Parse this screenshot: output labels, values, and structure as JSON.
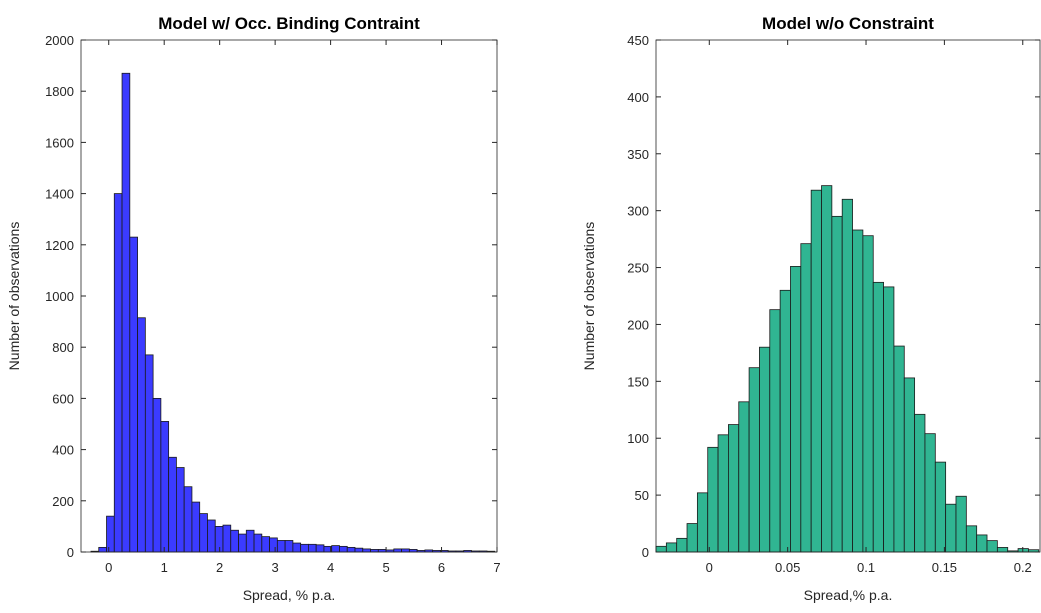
{
  "chart_data": [
    {
      "type": "histogram",
      "title": "Model w/ Occ. Binding Contraint",
      "xlabel": "Spread, % p.a.",
      "ylabel": "Number of observations",
      "color": "#3b3bff",
      "bins": [
        -0.32,
        -0.18,
        -0.04,
        0.1,
        0.24,
        0.38,
        0.52,
        0.66,
        0.8,
        0.94,
        1.08,
        1.22,
        1.36,
        1.5,
        1.64,
        1.78,
        1.92,
        2.06,
        2.2,
        2.34,
        2.48,
        2.62,
        2.76,
        2.9,
        3.04,
        3.18,
        3.32,
        3.46,
        3.6,
        3.74,
        3.88,
        4.02,
        4.16,
        4.3,
        4.44,
        4.58,
        4.72,
        4.86,
        5.0,
        5.14,
        5.28,
        5.42,
        5.56,
        5.7,
        5.84,
        5.98,
        6.12,
        6.26,
        6.4,
        6.54,
        6.68,
        6.82,
        6.96
      ],
      "values": [
        3,
        18,
        140,
        1400,
        1870,
        1230,
        915,
        770,
        600,
        510,
        370,
        330,
        255,
        195,
        150,
        125,
        100,
        105,
        85,
        70,
        85,
        70,
        60,
        55,
        45,
        45,
        35,
        30,
        30,
        28,
        22,
        25,
        22,
        18,
        15,
        12,
        10,
        10,
        8,
        12,
        12,
        10,
        6,
        8,
        6,
        6,
        4,
        4,
        6,
        4,
        4,
        3
      ],
      "xlim": [
        -0.5,
        7
      ],
      "xticks": [
        0,
        1,
        2,
        3,
        4,
        5,
        6,
        7
      ],
      "ylim": [
        0,
        2000
      ],
      "yticks": [
        0,
        200,
        400,
        600,
        800,
        1000,
        1200,
        1400,
        1600,
        1800,
        2000
      ]
    },
    {
      "type": "histogram",
      "title": "Model w/o Constraint",
      "xlabel": "Spread,% p.a.",
      "ylabel": "Number of observations",
      "color": "#30b592",
      "bins": [
        -0.034,
        -0.0274,
        -0.0208,
        -0.0142,
        -0.0076,
        -0.001,
        0.0056,
        0.0122,
        0.0188,
        0.0254,
        0.032,
        0.0386,
        0.0452,
        0.0518,
        0.0584,
        0.065,
        0.0716,
        0.0782,
        0.0848,
        0.0914,
        0.098,
        0.1046,
        0.1112,
        0.1178,
        0.1244,
        0.131,
        0.1376,
        0.1442,
        0.1508,
        0.1574,
        0.164,
        0.1706,
        0.1772,
        0.1838,
        0.1904,
        0.197,
        0.2036,
        0.2102
      ],
      "values": [
        5,
        8,
        12,
        25,
        52,
        92,
        103,
        112,
        132,
        162,
        180,
        213,
        230,
        251,
        271,
        318,
        322,
        295,
        310,
        283,
        278,
        237,
        233,
        181,
        153,
        121,
        104,
        79,
        42,
        49,
        23,
        15,
        10,
        4,
        1,
        3,
        2
      ],
      "xlim": [
        -0.034,
        0.211
      ],
      "xticks": [
        0,
        0.05,
        0.1,
        0.15,
        0.2
      ],
      "ylim": [
        0,
        450
      ],
      "yticks": [
        0,
        50,
        100,
        150,
        200,
        250,
        300,
        350,
        400,
        450
      ]
    }
  ]
}
